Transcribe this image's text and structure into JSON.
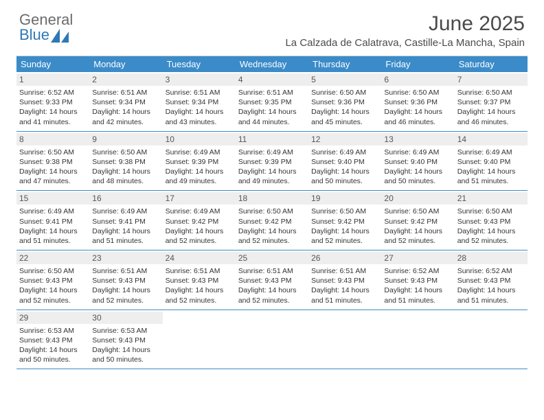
{
  "brand": {
    "name_top": "General",
    "name_bottom": "Blue"
  },
  "colors": {
    "accent": "#3b8bc9",
    "header_text": "#4a4a4a",
    "logo_gray": "#6b6b6b",
    "daynum_bg": "#eeeeee",
    "body_text": "#333333",
    "border_light": "#cfcfcf"
  },
  "title": "June 2025",
  "location": "La Calzada de Calatrava, Castille-La Mancha, Spain",
  "day_names": [
    "Sunday",
    "Monday",
    "Tuesday",
    "Wednesday",
    "Thursday",
    "Friday",
    "Saturday"
  ],
  "weeks": [
    [
      {
        "n": 1,
        "sr": "6:52 AM",
        "ss": "9:33 PM",
        "dl": "14 hours and 41 minutes."
      },
      {
        "n": 2,
        "sr": "6:51 AM",
        "ss": "9:34 PM",
        "dl": "14 hours and 42 minutes."
      },
      {
        "n": 3,
        "sr": "6:51 AM",
        "ss": "9:34 PM",
        "dl": "14 hours and 43 minutes."
      },
      {
        "n": 4,
        "sr": "6:51 AM",
        "ss": "9:35 PM",
        "dl": "14 hours and 44 minutes."
      },
      {
        "n": 5,
        "sr": "6:50 AM",
        "ss": "9:36 PM",
        "dl": "14 hours and 45 minutes."
      },
      {
        "n": 6,
        "sr": "6:50 AM",
        "ss": "9:36 PM",
        "dl": "14 hours and 46 minutes."
      },
      {
        "n": 7,
        "sr": "6:50 AM",
        "ss": "9:37 PM",
        "dl": "14 hours and 46 minutes."
      }
    ],
    [
      {
        "n": 8,
        "sr": "6:50 AM",
        "ss": "9:38 PM",
        "dl": "14 hours and 47 minutes."
      },
      {
        "n": 9,
        "sr": "6:50 AM",
        "ss": "9:38 PM",
        "dl": "14 hours and 48 minutes."
      },
      {
        "n": 10,
        "sr": "6:49 AM",
        "ss": "9:39 PM",
        "dl": "14 hours and 49 minutes."
      },
      {
        "n": 11,
        "sr": "6:49 AM",
        "ss": "9:39 PM",
        "dl": "14 hours and 49 minutes."
      },
      {
        "n": 12,
        "sr": "6:49 AM",
        "ss": "9:40 PM",
        "dl": "14 hours and 50 minutes."
      },
      {
        "n": 13,
        "sr": "6:49 AM",
        "ss": "9:40 PM",
        "dl": "14 hours and 50 minutes."
      },
      {
        "n": 14,
        "sr": "6:49 AM",
        "ss": "9:40 PM",
        "dl": "14 hours and 51 minutes."
      }
    ],
    [
      {
        "n": 15,
        "sr": "6:49 AM",
        "ss": "9:41 PM",
        "dl": "14 hours and 51 minutes."
      },
      {
        "n": 16,
        "sr": "6:49 AM",
        "ss": "9:41 PM",
        "dl": "14 hours and 51 minutes."
      },
      {
        "n": 17,
        "sr": "6:49 AM",
        "ss": "9:42 PM",
        "dl": "14 hours and 52 minutes."
      },
      {
        "n": 18,
        "sr": "6:50 AM",
        "ss": "9:42 PM",
        "dl": "14 hours and 52 minutes."
      },
      {
        "n": 19,
        "sr": "6:50 AM",
        "ss": "9:42 PM",
        "dl": "14 hours and 52 minutes."
      },
      {
        "n": 20,
        "sr": "6:50 AM",
        "ss": "9:42 PM",
        "dl": "14 hours and 52 minutes."
      },
      {
        "n": 21,
        "sr": "6:50 AM",
        "ss": "9:43 PM",
        "dl": "14 hours and 52 minutes."
      }
    ],
    [
      {
        "n": 22,
        "sr": "6:50 AM",
        "ss": "9:43 PM",
        "dl": "14 hours and 52 minutes."
      },
      {
        "n": 23,
        "sr": "6:51 AM",
        "ss": "9:43 PM",
        "dl": "14 hours and 52 minutes."
      },
      {
        "n": 24,
        "sr": "6:51 AM",
        "ss": "9:43 PM",
        "dl": "14 hours and 52 minutes."
      },
      {
        "n": 25,
        "sr": "6:51 AM",
        "ss": "9:43 PM",
        "dl": "14 hours and 52 minutes."
      },
      {
        "n": 26,
        "sr": "6:51 AM",
        "ss": "9:43 PM",
        "dl": "14 hours and 51 minutes."
      },
      {
        "n": 27,
        "sr": "6:52 AM",
        "ss": "9:43 PM",
        "dl": "14 hours and 51 minutes."
      },
      {
        "n": 28,
        "sr": "6:52 AM",
        "ss": "9:43 PM",
        "dl": "14 hours and 51 minutes."
      }
    ],
    [
      {
        "n": 29,
        "sr": "6:53 AM",
        "ss": "9:43 PM",
        "dl": "14 hours and 50 minutes."
      },
      {
        "n": 30,
        "sr": "6:53 AM",
        "ss": "9:43 PM",
        "dl": "14 hours and 50 minutes."
      },
      null,
      null,
      null,
      null,
      null
    ]
  ],
  "labels": {
    "sunrise": "Sunrise:",
    "sunset": "Sunset:",
    "daylight": "Daylight:"
  }
}
